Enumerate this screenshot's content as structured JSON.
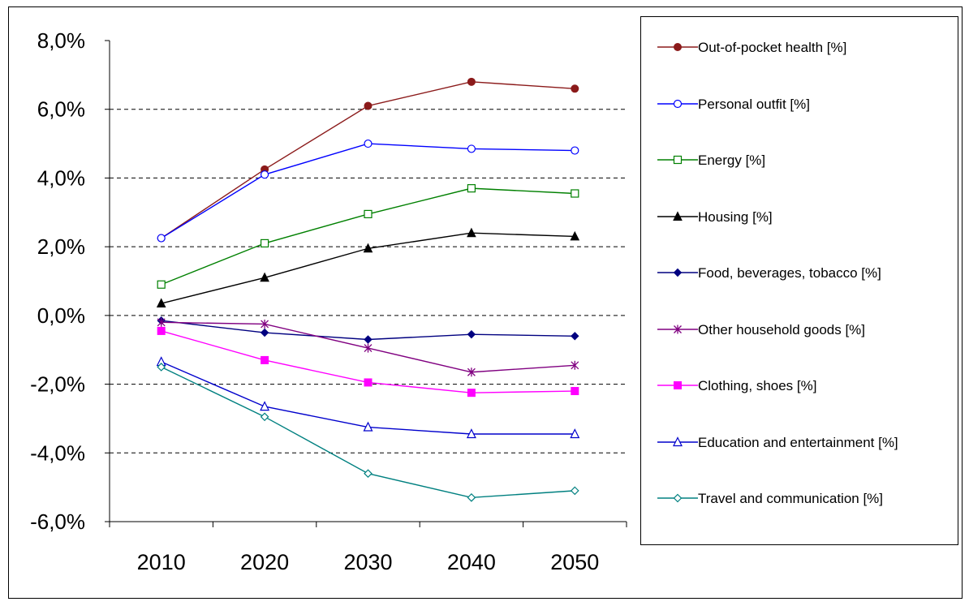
{
  "chart_data": {
    "type": "line",
    "x": [
      "2010",
      "2020",
      "2030",
      "2040",
      "2050"
    ],
    "ylim": [
      -6.0,
      8.0
    ],
    "y_ticks": [
      "8,0%",
      "6,0%",
      "4,0%",
      "2,0%",
      "0,0%",
      "-2,0%",
      "-4,0%",
      "-6,0%"
    ],
    "y_tick_values": [
      8,
      6,
      4,
      2,
      0,
      -2,
      -4,
      -6
    ],
    "grid": "horizontal dashed",
    "legend_position": "right",
    "series": [
      {
        "name": "Out-of-pocket health [%]",
        "values": [
          2.25,
          4.25,
          6.1,
          6.8,
          6.6
        ],
        "color": "#8B1A1A",
        "marker": "circle-filled"
      },
      {
        "name": "Personal outfit  [%]",
        "values": [
          2.25,
          4.1,
          5.0,
          4.85,
          4.8
        ],
        "color": "#0000FF",
        "marker": "circle-open"
      },
      {
        "name": "Energy [%]",
        "values": [
          0.9,
          2.1,
          2.95,
          3.7,
          3.55
        ],
        "color": "#008000",
        "marker": "square-open"
      },
      {
        "name": "Housing [%]",
        "values": [
          0.35,
          1.1,
          1.95,
          2.4,
          2.3
        ],
        "color": "#000000",
        "marker": "triangle-filled"
      },
      {
        "name": "Food, beverages, tobacco  [%]",
        "values": [
          -0.15,
          -0.5,
          -0.7,
          -0.55,
          -0.6
        ],
        "color": "#000080",
        "marker": "diamond-filled"
      },
      {
        "name": "Other household goods [%]",
        "values": [
          -0.2,
          -0.25,
          -0.95,
          -1.65,
          -1.45
        ],
        "color": "#800080",
        "marker": "asterisk"
      },
      {
        "name": "Clothing, shoes [%]",
        "values": [
          -0.45,
          -1.3,
          -1.95,
          -2.25,
          -2.2
        ],
        "color": "#FF00FF",
        "marker": "square-filled"
      },
      {
        "name": "Education and entertainment [%]",
        "values": [
          -1.35,
          -2.65,
          -3.25,
          -3.45,
          -3.45
        ],
        "color": "#0000CC",
        "marker": "triangle-open"
      },
      {
        "name": "Travel and communication [%]",
        "values": [
          -1.5,
          -2.95,
          -4.6,
          -5.3,
          -5.1
        ],
        "color": "#008080",
        "marker": "diamond-open"
      }
    ]
  }
}
